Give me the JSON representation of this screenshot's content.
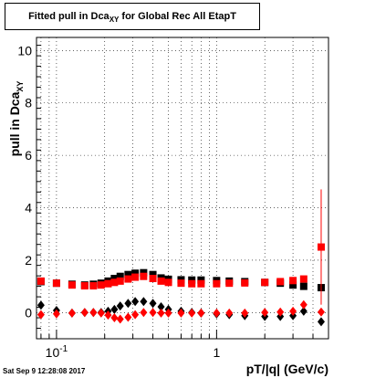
{
  "title": {
    "prefix": "Fitted pull in Dca",
    "sub": "XY",
    "suffix": " for Global Rec All EtapT"
  },
  "ylabel": {
    "main": "pull in Dca",
    "sub": "XY"
  },
  "xlabel": "pT/|q| (GeV/c)",
  "datestamp": "Sat Sep  9 12:28:08 2017",
  "chart_data": {
    "type": "scatter",
    "title": "Fitted pull in Dca_XY for Global Rec All EtapT",
    "xlabel": "pT/|q| (GeV/c)",
    "ylabel": "pull in Dca_XY",
    "xscale": "log",
    "xlim": [
      0.075,
      5.0
    ],
    "ylim": [
      -1,
      10.5
    ],
    "x_tick_labels": [
      "10^-1",
      "1"
    ],
    "y_tick_labels": [
      "0",
      "2",
      "4",
      "6",
      "8",
      "10"
    ],
    "grid": true,
    "series": [
      {
        "role": "width",
        "color": "#000000",
        "marker": "square",
        "x": [
          0.08,
          0.1,
          0.125,
          0.15,
          0.17,
          0.19,
          0.21,
          0.23,
          0.25,
          0.28,
          0.31,
          0.35,
          0.4,
          0.45,
          0.5,
          0.6,
          0.7,
          0.8,
          1.0,
          1.2,
          1.5,
          2.0,
          2.5,
          3.0,
          3.5,
          4.5
        ],
        "y": [
          1.18,
          1.12,
          1.08,
          1.05,
          1.08,
          1.12,
          1.2,
          1.3,
          1.38,
          1.45,
          1.5,
          1.52,
          1.45,
          1.32,
          1.27,
          1.25,
          1.24,
          1.24,
          1.22,
          1.2,
          1.18,
          1.15,
          1.12,
          1.05,
          1.0,
          0.95
        ]
      },
      {
        "role": "width",
        "color": "#ff0000",
        "marker": "square",
        "x": [
          0.08,
          0.1,
          0.125,
          0.15,
          0.17,
          0.19,
          0.21,
          0.23,
          0.25,
          0.28,
          0.31,
          0.35,
          0.4,
          0.45,
          0.5,
          0.6,
          0.7,
          0.8,
          1.0,
          1.2,
          1.5,
          2.0,
          2.5,
          3.0,
          3.5,
          4.5
        ],
        "y": [
          1.2,
          1.12,
          1.05,
          1.02,
          1.02,
          1.05,
          1.1,
          1.15,
          1.2,
          1.28,
          1.35,
          1.38,
          1.3,
          1.2,
          1.15,
          1.12,
          1.1,
          1.1,
          1.1,
          1.12,
          1.13,
          1.15,
          1.18,
          1.22,
          1.28,
          2.5
        ],
        "yerr": [
          0,
          0,
          0,
          0,
          0,
          0,
          0,
          0,
          0,
          0,
          0,
          0,
          0,
          0,
          0,
          0,
          0,
          0,
          0,
          0,
          0,
          0,
          0,
          0,
          0,
          2.2
        ]
      },
      {
        "role": "mean",
        "color": "#000000",
        "marker": "diamond",
        "x": [
          0.08,
          0.1,
          0.125,
          0.15,
          0.17,
          0.19,
          0.21,
          0.23,
          0.25,
          0.28,
          0.31,
          0.35,
          0.4,
          0.45,
          0.5,
          0.6,
          0.7,
          0.8,
          1.0,
          1.2,
          1.5,
          2.0,
          2.5,
          3.0,
          3.5,
          4.5
        ],
        "y": [
          0.28,
          0.08,
          -0.02,
          0.0,
          0.0,
          0.0,
          0.05,
          0.12,
          0.25,
          0.35,
          0.42,
          0.42,
          0.35,
          0.22,
          0.12,
          0.05,
          0.0,
          -0.02,
          -0.05,
          -0.08,
          -0.12,
          -0.15,
          -0.15,
          -0.12,
          0.05,
          -0.35
        ]
      },
      {
        "role": "mean",
        "color": "#ff0000",
        "marker": "diamond",
        "x": [
          0.08,
          0.1,
          0.125,
          0.15,
          0.17,
          0.19,
          0.21,
          0.23,
          0.25,
          0.28,
          0.31,
          0.35,
          0.4,
          0.45,
          0.5,
          0.6,
          0.7,
          0.8,
          1.0,
          1.2,
          1.5,
          2.0,
          2.5,
          3.0,
          3.5,
          4.5
        ],
        "y": [
          -0.08,
          -0.05,
          -0.02,
          0.0,
          0.0,
          -0.02,
          -0.1,
          -0.2,
          -0.25,
          -0.18,
          -0.08,
          0.0,
          0.0,
          -0.02,
          -0.02,
          -0.02,
          -0.02,
          -0.02,
          -0.02,
          -0.02,
          -0.02,
          0.0,
          0.02,
          0.05,
          0.3,
          0.02
        ]
      }
    ]
  }
}
